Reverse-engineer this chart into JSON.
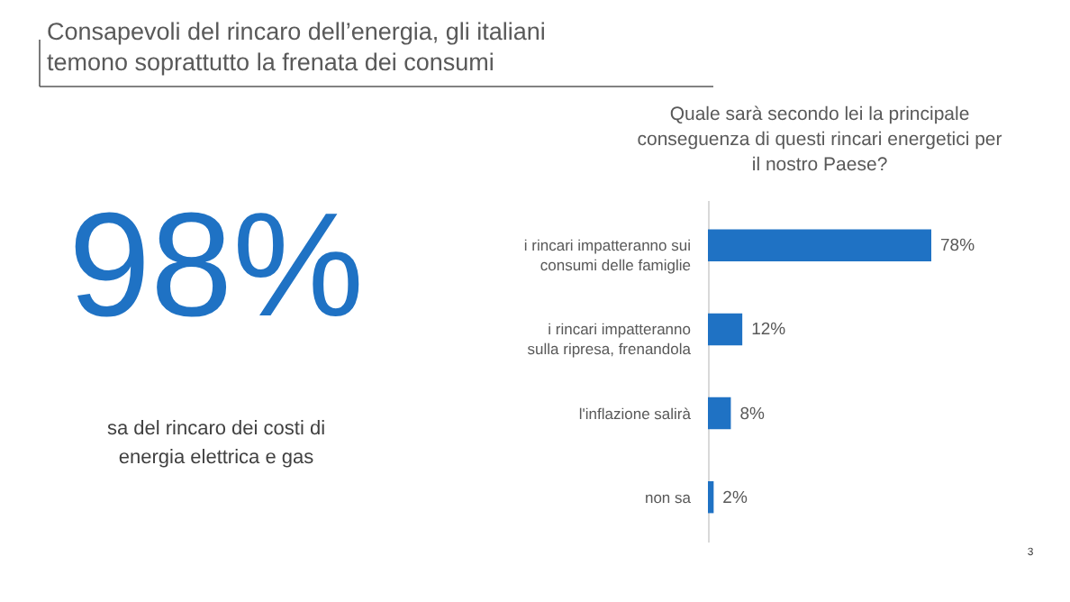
{
  "chart_data": [
    {
      "type": "other",
      "title": "Consapevoli del rincaro dell’energia, gli italiani temono soprattutto la frenata dei consumi",
      "annotations": [
        "98%",
        "sa del rincaro dei costi di energia elettrica e gas",
        "3"
      ]
    },
    {
      "type": "bar",
      "orientation": "horizontal",
      "tick_labels": "y",
      "title": "Quale sarà secondo lei la principale conseguenza di questi rincari energetici per il nostro Paese?",
      "categories": [
        "i rincari impatteranno sui consumi delle famiglie",
        "i rincari impatteranno sulla ripresa, frenandola",
        "l'inflazione salirà",
        "non sa"
      ],
      "values": [
        78,
        12,
        8,
        2
      ],
      "value_labels": [
        "78%",
        "12%",
        "8%",
        "2%"
      ],
      "color": "#1f72c4"
    }
  ]
}
